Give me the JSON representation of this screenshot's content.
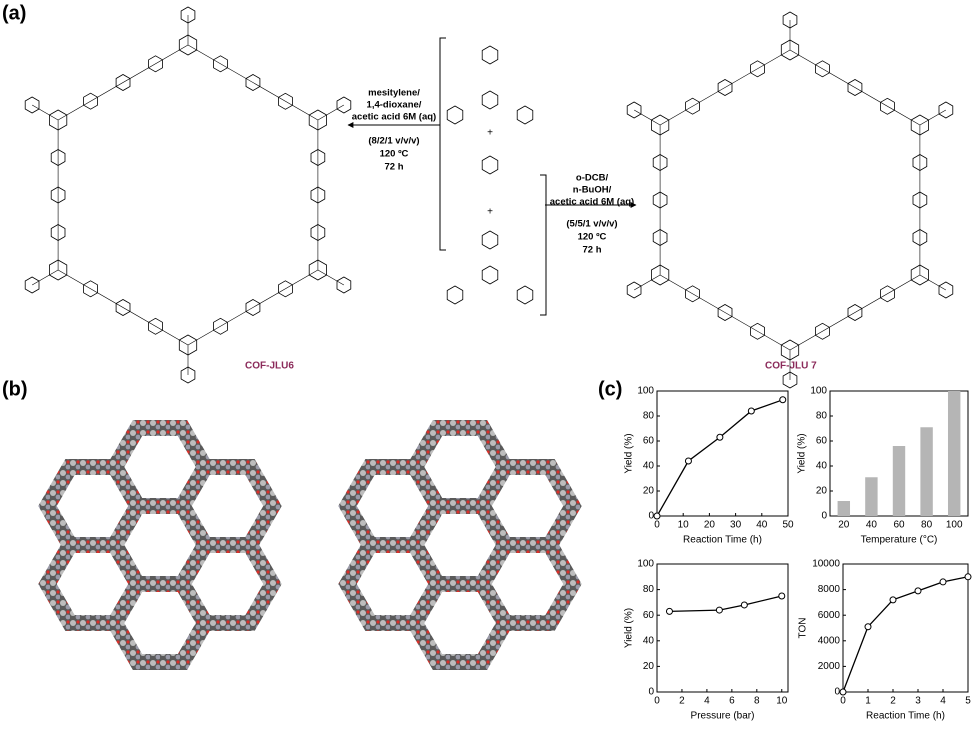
{
  "panel_labels": [
    "(a)",
    "(b)",
    "(c)"
  ],
  "scheme": {
    "left_conditions": [
      "mesitylene/",
      "1,4-dioxane/",
      "acetic acid 6M (aq)",
      "(8/2/1 v/v/v)",
      "120 ºC",
      "72 h"
    ],
    "right_conditions": [
      "o-DCB/",
      "n-BuOH/",
      "acetic acid 6M (aq)",
      "(5/5/1 v/v/v)",
      "120 ºC",
      "72 h"
    ],
    "plus": [
      "+",
      "+"
    ],
    "products": [
      "COF-JLU6",
      "COF-JLU 7"
    ]
  },
  "chart_data": [
    {
      "type": "line",
      "x_label": "Reaction Time (h)",
      "y_label": "Yield (%)",
      "x": [
        0,
        12,
        24,
        36,
        48
      ],
      "values": [
        0,
        44,
        63,
        84,
        93
      ],
      "color": "#000000",
      "xlim": [
        0,
        50
      ],
      "ylim": [
        0,
        100
      ],
      "xticks": [
        0,
        10,
        20,
        30,
        40,
        50
      ],
      "yticks": [
        0,
        20,
        40,
        60,
        80,
        100
      ]
    },
    {
      "type": "bar",
      "x_label": "Temperature (°C)",
      "y_label": "Yield (%)",
      "x": [
        20,
        40,
        60,
        80,
        100
      ],
      "values": [
        12,
        31,
        56,
        71,
        100
      ],
      "color": "#b5b5b5",
      "xlim": [
        10,
        110
      ],
      "ylim": [
        0,
        100
      ],
      "xticks": [
        20,
        40,
        60,
        80,
        100
      ],
      "yticks": [
        0,
        20,
        40,
        60,
        80,
        100
      ]
    },
    {
      "type": "line",
      "x_label": "Pressure (bar)",
      "y_label": "Yield (%)",
      "x": [
        1,
        5,
        7,
        10
      ],
      "values": [
        63,
        64,
        68,
        75
      ],
      "color": "#000000",
      "xlim": [
        0,
        10.5
      ],
      "ylim": [
        0,
        100
      ],
      "xticks": [
        0,
        2,
        4,
        6,
        8,
        10
      ],
      "yticks": [
        0,
        20,
        40,
        60,
        80,
        100
      ]
    },
    {
      "type": "line",
      "x_label": "Reaction Time (h)",
      "y_label": "TON",
      "x": [
        0,
        1,
        2,
        3,
        4,
        5
      ],
      "values": [
        0,
        5100,
        7200,
        7900,
        8600,
        9000
      ],
      "color": "#000000",
      "xlim": [
        0,
        5
      ],
      "ylim": [
        0,
        10000
      ],
      "xticks": [
        0,
        1,
        2,
        3,
        4,
        5
      ],
      "yticks": [
        0,
        2000,
        4000,
        6000,
        8000,
        10000
      ]
    }
  ]
}
